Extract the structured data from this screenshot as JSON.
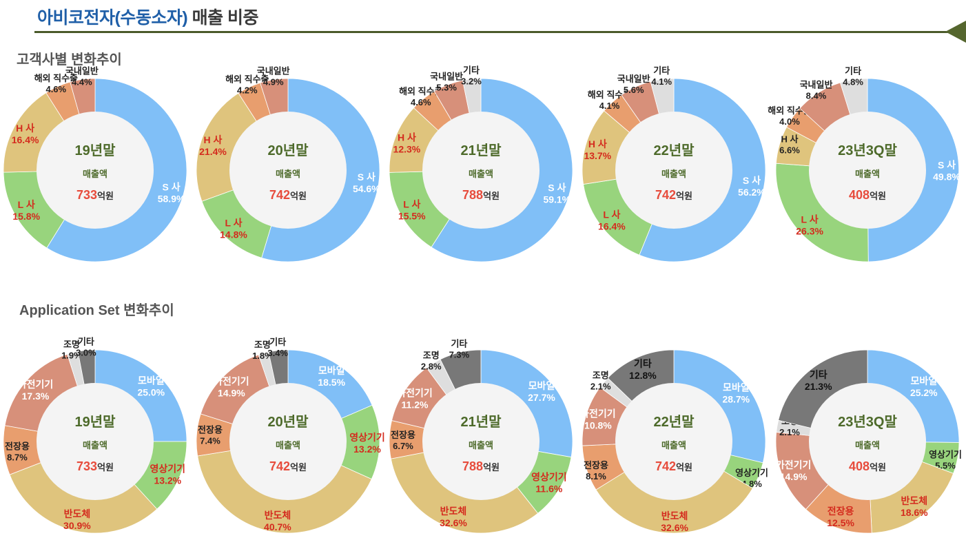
{
  "header": {
    "title_company": "아비코전자(수동소자)",
    "title_rest": "매출 비중"
  },
  "sections": {
    "customer_title": "고객사별 변화추이",
    "application_title": "Application Set 변화추이"
  },
  "colors": {
    "blue": "#80bff7",
    "green": "#98d47d",
    "yellow": "#dfc47d",
    "orange": "#e89e6e",
    "salmon": "#d7907a",
    "lightgray": "#dedede",
    "darkgray": "#787878",
    "value_red": "#d42b1e",
    "center_text": "#4d6a2a",
    "center_amount": "#e74c3c"
  },
  "chart_data": [
    {
      "type": "pie",
      "group": "customer",
      "center_label": "19년말",
      "sales_label": "매출액",
      "amount": "733",
      "unit": "억원",
      "slices": [
        {
          "name": "S 사",
          "value": 58.9,
          "color": "blue"
        },
        {
          "name": "L 사",
          "value": 15.8,
          "color": "green"
        },
        {
          "name": "H 사",
          "value": 16.4,
          "color": "yellow"
        },
        {
          "name": "해외 직수출",
          "value": 4.6,
          "color": "orange"
        },
        {
          "name": "국내일반",
          "value": 4.4,
          "color": "salmon"
        }
      ]
    },
    {
      "type": "pie",
      "group": "customer",
      "center_label": "20년말",
      "sales_label": "매출액",
      "amount": "742",
      "unit": "억원",
      "slices": [
        {
          "name": "S 사",
          "value": 54.6,
          "color": "blue"
        },
        {
          "name": "L 사",
          "value": 14.8,
          "color": "green"
        },
        {
          "name": "H 사",
          "value": 21.4,
          "color": "yellow"
        },
        {
          "name": "해외 직수출",
          "value": 4.2,
          "color": "orange"
        },
        {
          "name": "국내일반",
          "value": 4.9,
          "color": "salmon"
        }
      ]
    },
    {
      "type": "pie",
      "group": "customer",
      "center_label": "21년말",
      "sales_label": "매출액",
      "amount": "788",
      "unit": "억원",
      "slices": [
        {
          "name": "S 사",
          "value": 59.1,
          "color": "blue"
        },
        {
          "name": "L 사",
          "value": 15.5,
          "color": "green"
        },
        {
          "name": "H 사",
          "value": 12.3,
          "color": "yellow"
        },
        {
          "name": "해외 직수출",
          "value": 4.6,
          "color": "orange"
        },
        {
          "name": "국내일반",
          "value": 5.3,
          "color": "salmon"
        },
        {
          "name": "기타",
          "value": 3.2,
          "color": "lightgray"
        }
      ]
    },
    {
      "type": "pie",
      "group": "customer",
      "center_label": "22년말",
      "sales_label": "매출액",
      "amount": "742",
      "unit": "억원",
      "slices": [
        {
          "name": "S 사",
          "value": 56.2,
          "color": "blue"
        },
        {
          "name": "L 사",
          "value": 16.4,
          "color": "green"
        },
        {
          "name": "H 사",
          "value": 13.7,
          "color": "yellow"
        },
        {
          "name": "해외 직수출",
          "value": 4.1,
          "color": "orange"
        },
        {
          "name": "국내일반",
          "value": 5.6,
          "color": "salmon"
        },
        {
          "name": "기타",
          "value": 4.1,
          "color": "lightgray"
        }
      ]
    },
    {
      "type": "pie",
      "group": "customer",
      "center_label": "23년3Q말",
      "sales_label": "매출액",
      "amount": "408",
      "unit": "억원",
      "slices": [
        {
          "name": "S 사",
          "value": 49.8,
          "color": "blue"
        },
        {
          "name": "L 사",
          "value": 26.3,
          "color": "green"
        },
        {
          "name": "H 사",
          "value": 6.6,
          "color": "yellow"
        },
        {
          "name": "해외 직수출",
          "value": 4.0,
          "color": "orange"
        },
        {
          "name": "국내일반",
          "value": 8.4,
          "color": "salmon"
        },
        {
          "name": "기타",
          "value": 4.8,
          "color": "lightgray"
        }
      ]
    },
    {
      "type": "pie",
      "group": "application",
      "center_label": "19년말",
      "sales_label": "매출액",
      "amount": "733",
      "unit": "억원",
      "slices": [
        {
          "name": "모바일",
          "value": 25.0,
          "color": "blue"
        },
        {
          "name": "영상기기",
          "value": 13.2,
          "color": "green"
        },
        {
          "name": "반도체",
          "value": 30.9,
          "color": "yellow"
        },
        {
          "name": "전장용",
          "value": 8.7,
          "color": "orange"
        },
        {
          "name": "가전기기",
          "value": 17.3,
          "color": "salmon"
        },
        {
          "name": "조명",
          "value": 1.9,
          "color": "lightgray"
        },
        {
          "name": "기타",
          "value": 3.0,
          "color": "darkgray"
        }
      ]
    },
    {
      "type": "pie",
      "group": "application",
      "center_label": "20년말",
      "sales_label": "매출액",
      "amount": "742",
      "unit": "억원",
      "slices": [
        {
          "name": "모바일",
          "value": 18.5,
          "color": "blue"
        },
        {
          "name": "영상기기",
          "value": 13.2,
          "color": "green"
        },
        {
          "name": "반도체",
          "value": 40.7,
          "color": "yellow"
        },
        {
          "name": "전장용",
          "value": 7.4,
          "color": "orange"
        },
        {
          "name": "가전기기",
          "value": 14.9,
          "color": "salmon"
        },
        {
          "name": "조명",
          "value": 1.8,
          "color": "lightgray"
        },
        {
          "name": "기타",
          "value": 3.4,
          "color": "darkgray"
        }
      ]
    },
    {
      "type": "pie",
      "group": "application",
      "center_label": "21년말",
      "sales_label": "매출액",
      "amount": "788",
      "unit": "억원",
      "slices": [
        {
          "name": "모바일",
          "value": 27.7,
          "color": "blue"
        },
        {
          "name": "영상기기",
          "value": 11.6,
          "color": "green"
        },
        {
          "name": "반도체",
          "value": 32.6,
          "color": "yellow"
        },
        {
          "name": "전장용",
          "value": 6.7,
          "color": "orange"
        },
        {
          "name": "가전기기",
          "value": 11.2,
          "color": "salmon"
        },
        {
          "name": "조명",
          "value": 2.8,
          "color": "lightgray"
        },
        {
          "name": "기타",
          "value": 7.3,
          "color": "darkgray"
        }
      ]
    },
    {
      "type": "pie",
      "group": "application",
      "center_label": "22년말",
      "sales_label": "매출액",
      "amount": "742",
      "unit": "억원",
      "slices": [
        {
          "name": "모바일",
          "value": 28.7,
          "color": "blue"
        },
        {
          "name": "영상기기",
          "value": 4.8,
          "color": "green"
        },
        {
          "name": "반도체",
          "value": 32.6,
          "color": "yellow"
        },
        {
          "name": "전장용",
          "value": 8.1,
          "color": "orange"
        },
        {
          "name": "가전기기",
          "value": 10.8,
          "color": "salmon"
        },
        {
          "name": "조명",
          "value": 2.1,
          "color": "lightgray"
        },
        {
          "name": "기타",
          "value": 12.8,
          "color": "darkgray"
        }
      ]
    },
    {
      "type": "pie",
      "group": "application",
      "center_label": "23년3Q말",
      "sales_label": "매출액",
      "amount": "408",
      "unit": "억원",
      "slices": [
        {
          "name": "모바일",
          "value": 25.2,
          "color": "blue"
        },
        {
          "name": "영상기기",
          "value": 5.5,
          "color": "green"
        },
        {
          "name": "반도체",
          "value": 18.6,
          "color": "yellow"
        },
        {
          "name": "전장용",
          "value": 12.5,
          "color": "orange"
        },
        {
          "name": "가전기기",
          "value": 14.9,
          "color": "salmon"
        },
        {
          "name": "조명",
          "value": 2.1,
          "color": "lightgray"
        },
        {
          "name": "기타",
          "value": 21.3,
          "color": "darkgray"
        }
      ]
    }
  ]
}
